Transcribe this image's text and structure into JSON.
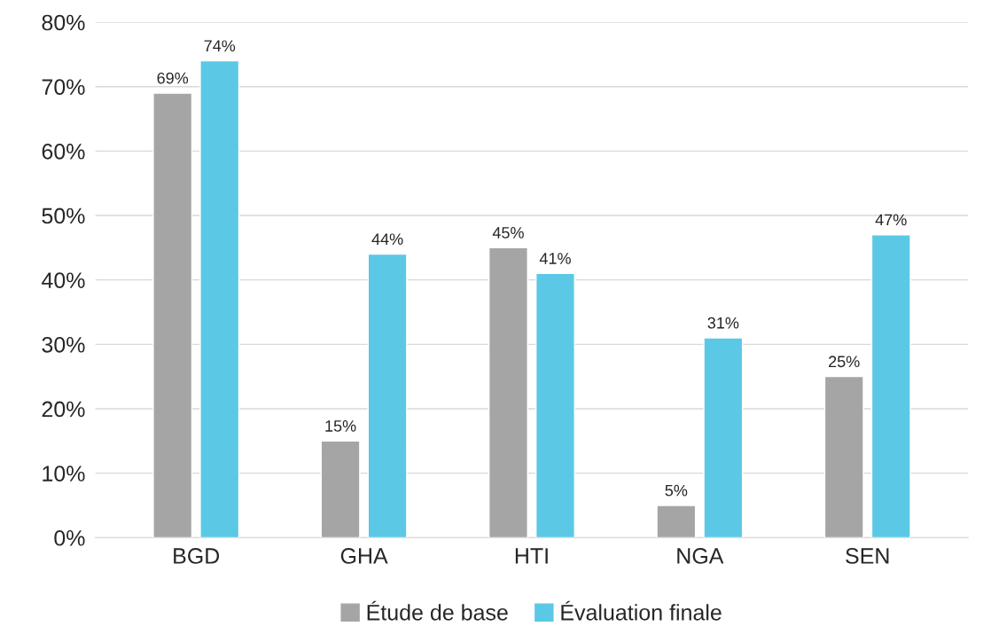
{
  "chart_data": {
    "type": "bar",
    "categories": [
      "BGD",
      "GHA",
      "HTI",
      "NGA",
      "SEN"
    ],
    "series": [
      {
        "name": "Étude de base",
        "color": "#a5a5a5",
        "values": [
          69,
          15,
          45,
          5,
          25
        ],
        "value_labels": [
          "69%",
          "15%",
          "45%",
          "5%",
          "25%"
        ]
      },
      {
        "name": "Évaluation finale",
        "color": "#5bc8e6",
        "values": [
          74,
          44,
          41,
          31,
          47
        ],
        "value_labels": [
          "74%",
          "44%",
          "41%",
          "31%",
          "47%"
        ]
      }
    ],
    "ylim": [
      0,
      80
    ],
    "yticks": [
      {
        "value": 0,
        "label": "0%"
      },
      {
        "value": 10,
        "label": "10%"
      },
      {
        "value": 20,
        "label": "20%"
      },
      {
        "value": 30,
        "label": "30%"
      },
      {
        "value": 40,
        "label": "40%"
      },
      {
        "value": 50,
        "label": "50%"
      },
      {
        "value": 60,
        "label": "60%"
      },
      {
        "value": 70,
        "label": "70%"
      },
      {
        "value": 80,
        "label": "80%"
      }
    ],
    "grid": "y",
    "legend": "bottom"
  }
}
